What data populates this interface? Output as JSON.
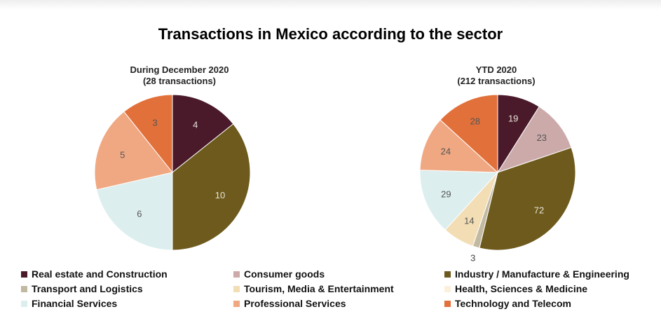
{
  "chart_data": {
    "type": "pie",
    "title": "Transactions in Mexico according to the sector",
    "legend": {
      "placement": "bottom",
      "entries": [
        {
          "name": "Real estate and Construction",
          "color": "#4A1A2A"
        },
        {
          "name": "Consumer goods",
          "color": "#CDAAAA"
        },
        {
          "name": "Industry / Manufacture & Engineering",
          "color": "#6D5A1C"
        },
        {
          "name": "Transport and Logistics",
          "color": "#C2B9A2"
        },
        {
          "name": "Tourism, Media & Entertainment",
          "color": "#F2DDB5"
        },
        {
          "name": "Health, Sciences & Medicine",
          "color": "#FBF0DC"
        },
        {
          "name": "Financial Services",
          "color": "#DCEEEE"
        },
        {
          "name": "Professional Services",
          "color": "#F0A882"
        },
        {
          "name": "Technology and Telecom",
          "color": "#E2703A"
        }
      ]
    },
    "pies": [
      {
        "title_line1": "During December 2020",
        "title_line2": "(28 transactions)",
        "slices": [
          {
            "category": "Real estate and Construction",
            "value": 4,
            "label": "4"
          },
          {
            "category": "Industry / Manufacture & Engineering",
            "value": 10,
            "label": "10"
          },
          {
            "category": "Financial Services",
            "value": 6,
            "label": "6"
          },
          {
            "category": "Professional Services",
            "value": 5,
            "label": "5"
          },
          {
            "category": "Technology and Telecom",
            "value": 3,
            "label": "3"
          }
        ]
      },
      {
        "title_line1": "YTD 2020",
        "title_line2": "(212 transactions)",
        "slices": [
          {
            "category": "Real estate and Construction",
            "value": 19,
            "label": "19"
          },
          {
            "category": "Consumer goods",
            "value": 23,
            "label": "23"
          },
          {
            "category": "Industry / Manufacture & Engineering",
            "value": 72,
            "label": "72"
          },
          {
            "category": "Transport and Logistics",
            "value": 3,
            "label": "3"
          },
          {
            "category": "Tourism, Media & Entertainment",
            "value": 14,
            "label": "14"
          },
          {
            "category": "Financial Services",
            "value": 29,
            "label": "29"
          },
          {
            "category": "Professional Services",
            "value": 24,
            "label": "24"
          },
          {
            "category": "Technology and Telecom",
            "value": 28,
            "label": "28"
          }
        ]
      }
    ]
  }
}
